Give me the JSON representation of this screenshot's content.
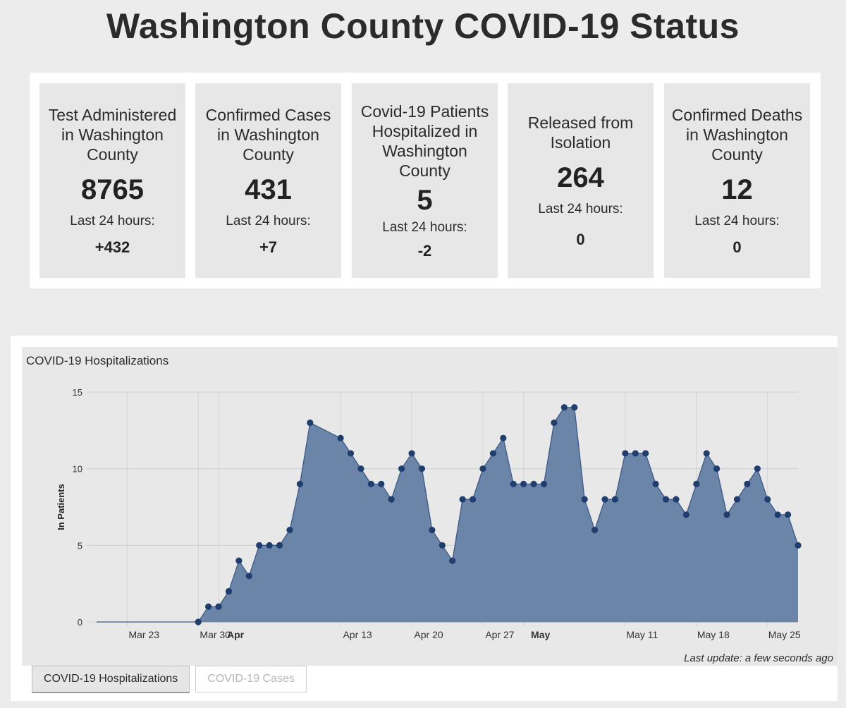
{
  "page": {
    "title": "Washington County COVID-19 Status"
  },
  "stats": [
    {
      "label": "Test Administered in Washington County",
      "value": "8765",
      "sub": "Last 24 hours:",
      "delta": "+432"
    },
    {
      "label": "Confirmed Cases in Washington County",
      "value": "431",
      "sub": "Last 24 hours:",
      "delta": "+7"
    },
    {
      "label": "Covid-19 Patients Hospitalized in Washington County",
      "value": "5",
      "sub": "Last 24 hours:",
      "delta": "-2"
    },
    {
      "label": "Released from Isolation",
      "value": "264",
      "sub": "Last 24 hours:",
      "delta": "0"
    },
    {
      "label": "Confirmed Deaths in Washington County",
      "value": "12",
      "sub": "Last 24 hours:",
      "delta": "0"
    }
  ],
  "chart_panel": {
    "last_update": "Last update: a few seconds ago",
    "tabs": [
      {
        "label": "COVID-19 Hospitalizations",
        "active": true
      },
      {
        "label": "COVID-19 Cases",
        "active": false
      }
    ]
  },
  "chart_data": {
    "type": "area",
    "title": "COVID-19 Hospitalizations",
    "xlabel": "",
    "ylabel": "In Patients",
    "ylim": [
      0,
      15
    ],
    "yticks": [
      0,
      5,
      10,
      15
    ],
    "x_start": "2020-03-20",
    "x_end": "2020-05-28",
    "xticks": [
      {
        "label": "Mar 23",
        "date": "2020-03-23",
        "bold": false
      },
      {
        "label": "Mar 30",
        "date": "2020-03-30",
        "bold": false
      },
      {
        "label": "Apr",
        "date": "2020-04-01",
        "bold": true
      },
      {
        "label": "Apr 13",
        "date": "2020-04-13",
        "bold": false
      },
      {
        "label": "Apr 20",
        "date": "2020-04-20",
        "bold": false
      },
      {
        "label": "Apr 27",
        "date": "2020-04-27",
        "bold": false
      },
      {
        "label": "May",
        "date": "2020-05-01",
        "bold": true
      },
      {
        "label": "May 11",
        "date": "2020-05-11",
        "bold": false
      },
      {
        "label": "May 18",
        "date": "2020-05-18",
        "bold": false
      },
      {
        "label": "May 25",
        "date": "2020-05-25",
        "bold": false
      }
    ],
    "colors": {
      "fill": "#6a85a8",
      "line": "#3d5a86",
      "point": "#1f3e6e"
    },
    "grid": true,
    "series": [
      {
        "points": [
          [
            "2020-03-20",
            0
          ],
          [
            "2020-03-30",
            0
          ],
          [
            "2020-03-31",
            1
          ],
          [
            "2020-04-01",
            1
          ],
          [
            "2020-04-02",
            2
          ],
          [
            "2020-04-03",
            4
          ],
          [
            "2020-04-04",
            3
          ],
          [
            "2020-04-05",
            5
          ],
          [
            "2020-04-06",
            5
          ],
          [
            "2020-04-07",
            5
          ],
          [
            "2020-04-08",
            6
          ],
          [
            "2020-04-09",
            9
          ],
          [
            "2020-04-10",
            13
          ],
          [
            "2020-04-13",
            12
          ],
          [
            "2020-04-14",
            11
          ],
          [
            "2020-04-15",
            10
          ],
          [
            "2020-04-16",
            9
          ],
          [
            "2020-04-17",
            9
          ],
          [
            "2020-04-18",
            8
          ],
          [
            "2020-04-19",
            10
          ],
          [
            "2020-04-20",
            11
          ],
          [
            "2020-04-21",
            10
          ],
          [
            "2020-04-22",
            6
          ],
          [
            "2020-04-23",
            5
          ],
          [
            "2020-04-24",
            4
          ],
          [
            "2020-04-25",
            8
          ],
          [
            "2020-04-26",
            8
          ],
          [
            "2020-04-27",
            10
          ],
          [
            "2020-04-28",
            11
          ],
          [
            "2020-04-29",
            12
          ],
          [
            "2020-04-30",
            9
          ],
          [
            "2020-05-01",
            9
          ],
          [
            "2020-05-02",
            9
          ],
          [
            "2020-05-03",
            9
          ],
          [
            "2020-05-04",
            13
          ],
          [
            "2020-05-05",
            14
          ],
          [
            "2020-05-06",
            14
          ],
          [
            "2020-05-07",
            8
          ],
          [
            "2020-05-08",
            6
          ],
          [
            "2020-05-09",
            8
          ],
          [
            "2020-05-10",
            8
          ],
          [
            "2020-05-11",
            11
          ],
          [
            "2020-05-12",
            11
          ],
          [
            "2020-05-13",
            11
          ],
          [
            "2020-05-14",
            9
          ],
          [
            "2020-05-15",
            8
          ],
          [
            "2020-05-16",
            8
          ],
          [
            "2020-05-17",
            7
          ],
          [
            "2020-05-18",
            9
          ],
          [
            "2020-05-19",
            11
          ],
          [
            "2020-05-20",
            10
          ],
          [
            "2020-05-21",
            7
          ],
          [
            "2020-05-22",
            8
          ],
          [
            "2020-05-23",
            9
          ],
          [
            "2020-05-24",
            10
          ],
          [
            "2020-05-25",
            8
          ],
          [
            "2020-05-26",
            7
          ],
          [
            "2020-05-27",
            7
          ],
          [
            "2020-05-28",
            5
          ]
        ],
        "markers_from": "2020-03-30"
      }
    ]
  }
}
